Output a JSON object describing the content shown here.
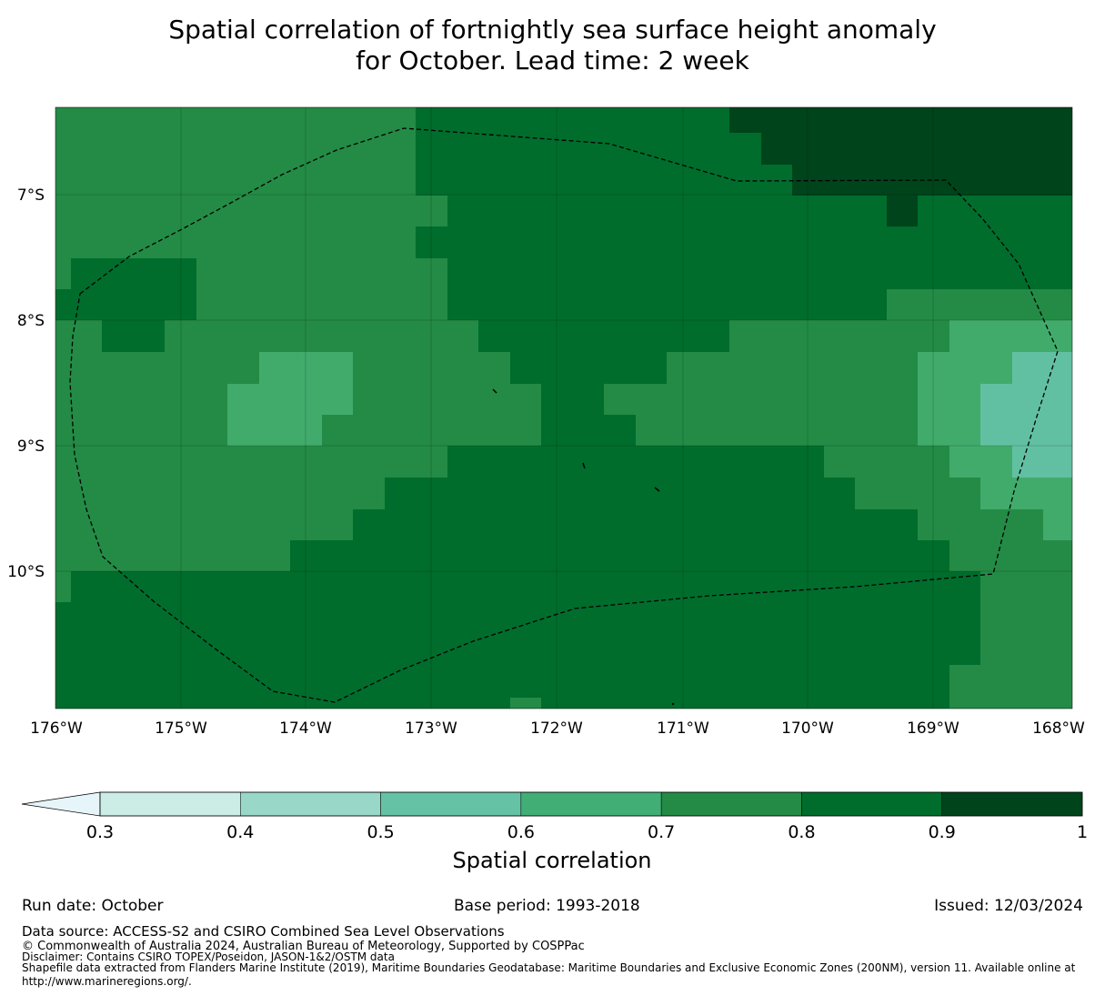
{
  "title": {
    "line1": "Spatial correlation of fortnightly sea surface height anomaly",
    "line2": "for October. Lead time: 2 week"
  },
  "map": {
    "lon_labels": [
      "176°W",
      "175°W",
      "174°W",
      "173°W",
      "172°W",
      "171°W",
      "170°W",
      "169°W",
      "168°W"
    ],
    "lat_labels": [
      "7°S",
      "8°S",
      "9°S",
      "10°S"
    ],
    "lon_range": [
      -176,
      -168
    ],
    "lat_range": [
      -11.1,
      -6.3
    ],
    "colors": {
      "c60": "#41ab6c",
      "c50": "#62c0a2",
      "c70": "#238b45",
      "c80": "#006d2c",
      "c90": "#00441b"
    },
    "eez_boundary": "dashed"
  },
  "colorbar": {
    "ticks": [
      "0.3",
      "0.4",
      "0.5",
      "0.6",
      "0.7",
      "0.8",
      "0.9",
      "1"
    ],
    "colors": [
      "#ccece6",
      "#99d8c9",
      "#66c2a4",
      "#41ae76",
      "#238b45",
      "#006d2c",
      "#00441b"
    ],
    "extend_color": "#e5f5f9",
    "label": "Spatial correlation"
  },
  "footer": {
    "run_date": "Run date: October",
    "base_period": "Base period: 1993-2018",
    "issued": "Issued: 12/03/2024",
    "data_source": "Data source: ACCESS-S2 and CSIRO Combined Sea Level Observations",
    "copyright": "© Commonwealth of Australia 2024, Australian Bureau of Meteorology, Supported by COSPPac",
    "disclaimer": "Disclaimer: Contains CSIRO TOPEX/Poseidon, JASON-1&2/OSTM data",
    "shapefile_line1": "Shapefile data extracted from Flanders Marine Institute (2019), Maritime Boundaries Geodatabase: Maritime Boundaries and Exclusive Economic Zones (200NM), version 11. Available online at",
    "shapefile_line2": "http://www.marineregions.org/."
  }
}
